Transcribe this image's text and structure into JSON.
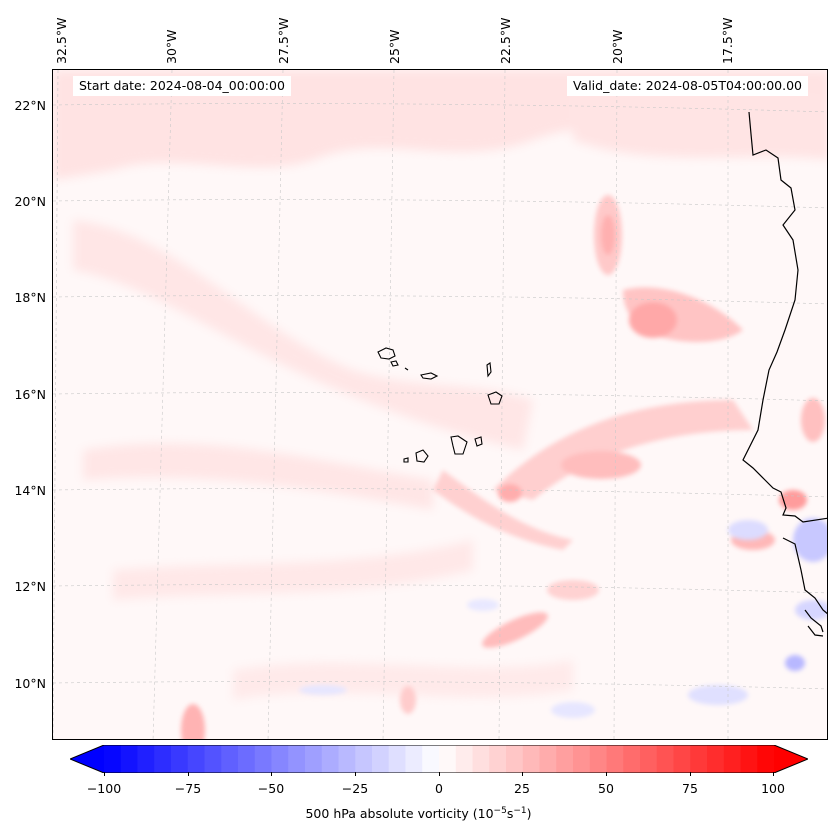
{
  "map": {
    "lon_labels": [
      "32.5°W",
      "30°W",
      "27.5°W",
      "25°W",
      "22.5°W",
      "20°W",
      "17.5°W"
    ],
    "lat_labels": [
      "22°N",
      "20°N",
      "18°N",
      "16°N",
      "14°N",
      "12°N",
      "10°N"
    ],
    "start_date": "Start date: 2024-08-04_00:00:00",
    "valid_date": "Valid_date: 2024-08-05T04:00:00.00",
    "islands": "Cape Verde Islands",
    "coastline": "West African coastline"
  },
  "colorbar": {
    "ticks": [
      "−100",
      "−75",
      "−50",
      "−25",
      "0",
      "25",
      "50",
      "75",
      "100"
    ],
    "min": -100,
    "max": 100,
    "label": "500 hPa absolute vorticity (10",
    "label_exp1": "−5",
    "label_mid": "s",
    "label_exp2": "−1",
    "label_end": ")",
    "neg_color": "#0000ff",
    "pos_color": "#ff0000"
  }
}
